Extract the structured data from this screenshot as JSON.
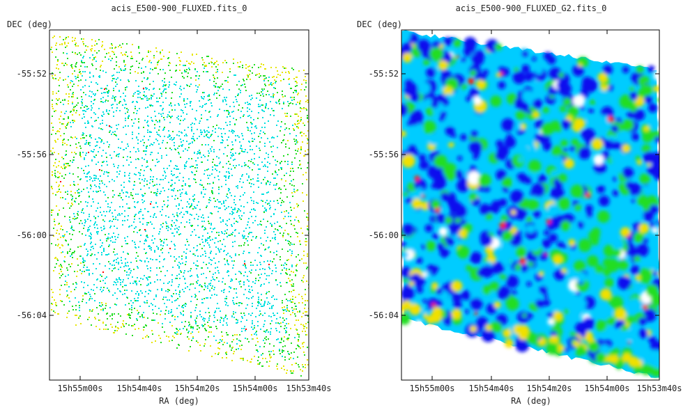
{
  "chart_data": [
    {
      "type": "heatmap",
      "title": "acis_E500-900_FLUXED.fits_0",
      "xlabel": "RA (deg)",
      "ylabel": "DEC (deg)",
      "x_ticks": [
        "15h55m00s",
        "15h54m40s",
        "15h54m20s",
        "15h54m00s",
        "15h53m40s"
      ],
      "y_ticks": [
        "-55:52",
        "-55:56",
        "-56:00",
        "-56:04"
      ],
      "render": "sparse-points",
      "colormap": [
        "#00e0e0",
        "#22dd22",
        "#e6e600",
        "#ff0000"
      ]
    },
    {
      "type": "heatmap",
      "title": "acis_E500-900_FLUXED_G2.fits_0",
      "xlabel": "RA (deg)",
      "ylabel": "DEC (deg)",
      "x_ticks": [
        "15h55m00s",
        "15h54m40s",
        "15h54m20s",
        "15h54m00s",
        "15h53m40s"
      ],
      "y_ticks": [
        "-55:52",
        "-55:56",
        "-56:00",
        "-56:04"
      ],
      "render": "smoothed-field",
      "colormap": [
        "#ffffff",
        "#1010ee",
        "#00ccff",
        "#22dd22",
        "#f0e000",
        "#ff2000"
      ]
    }
  ]
}
